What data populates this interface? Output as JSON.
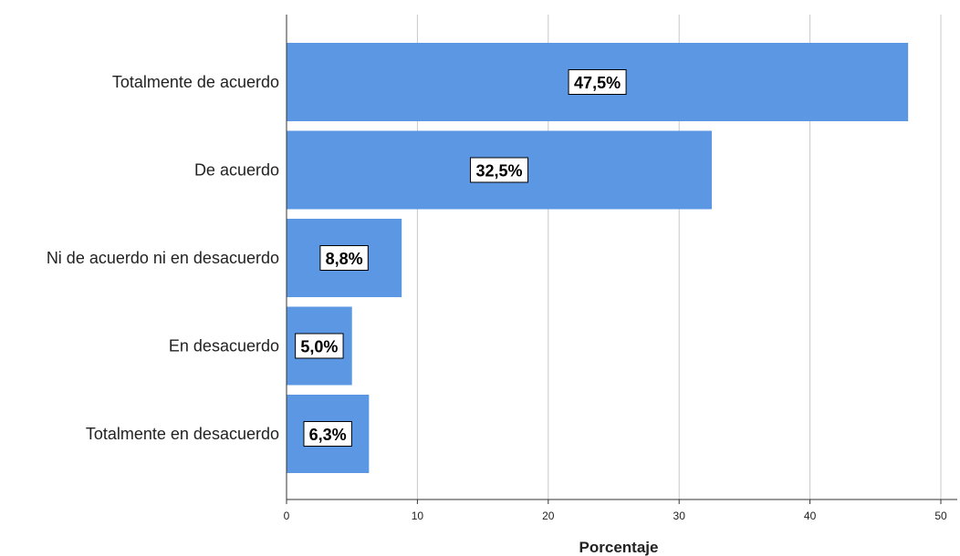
{
  "chart_data": {
    "type": "bar",
    "orientation": "horizontal",
    "categories": [
      "Totalmente de acuerdo",
      "De acuerdo",
      "Ni de acuerdo ni en desacuerdo",
      "En desacuerdo",
      "Totalmente en desacuerdo"
    ],
    "values": [
      47.5,
      32.5,
      8.8,
      5.0,
      6.3
    ],
    "data_labels": [
      "47,5%",
      "32,5%",
      "8,8%",
      "5,0%",
      "6,3%"
    ],
    "xlabel": "Porcentaje",
    "ylabel": "",
    "xlim": [
      0,
      50
    ],
    "xticks": [
      0,
      10,
      20,
      30,
      40,
      50
    ],
    "xtick_labels": [
      "0",
      "10",
      "20",
      "30",
      "40",
      "50"
    ],
    "grid": "vertical",
    "legend": "none",
    "bar_color": "#5b97e2"
  }
}
